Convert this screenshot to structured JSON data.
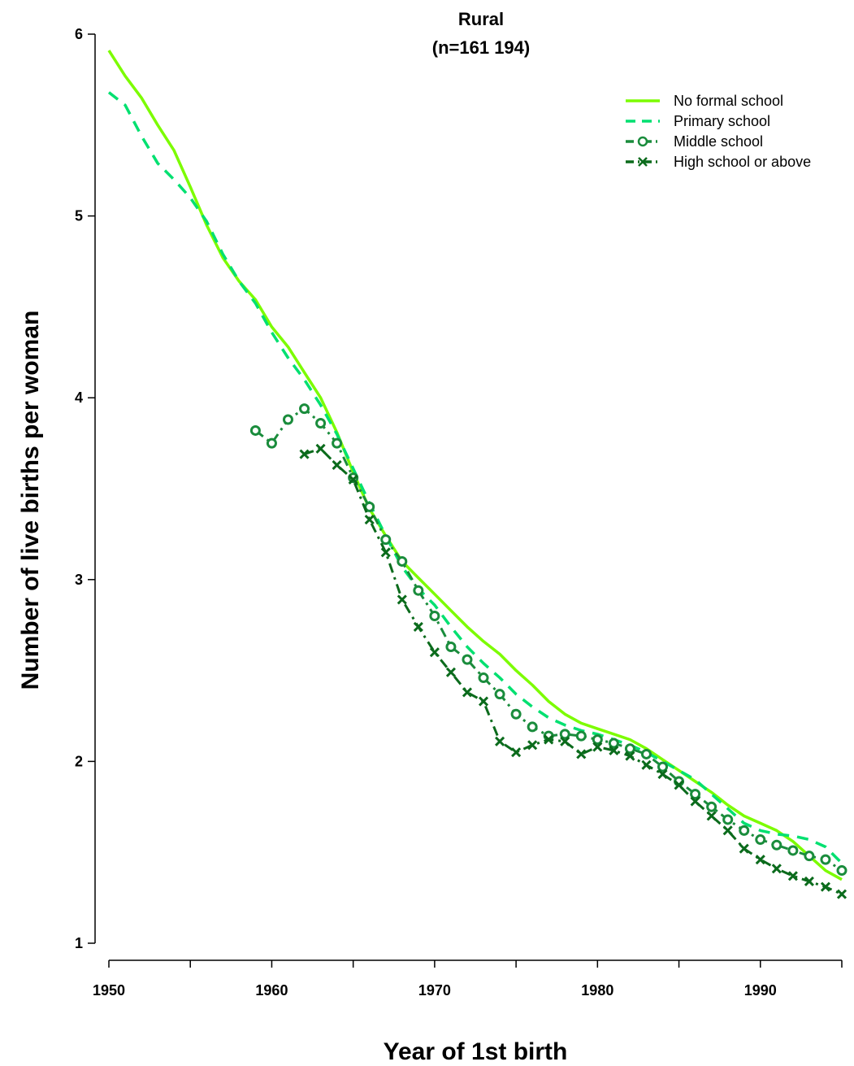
{
  "chart_data": {
    "type": "line",
    "title": "Rural",
    "subtitle": "(n=161 194)",
    "xlabel": "Year of 1st birth",
    "ylabel": "Number of live births per woman",
    "xlim": [
      1950,
      1995
    ],
    "ylim": [
      1,
      6
    ],
    "x_ticks": [
      1950,
      1955,
      1960,
      1965,
      1970,
      1975,
      1980,
      1985,
      1990,
      1995
    ],
    "x_tick_labels": [
      "1950",
      "1960",
      "1970",
      "1980",
      "1990"
    ],
    "y_ticks": [
      1,
      2,
      3,
      4,
      5,
      6
    ],
    "y_tick_labels": [
      "1",
      "2",
      "3",
      "4",
      "5",
      "6"
    ],
    "grid": false,
    "legend_position": "top-right",
    "series": [
      {
        "name": "No formal school",
        "color": "#7CFC00",
        "style": "solid",
        "x": [
          1950,
          1951,
          1952,
          1953,
          1954,
          1955,
          1956,
          1957,
          1958,
          1959,
          1960,
          1961,
          1962,
          1963,
          1964,
          1965,
          1966,
          1967,
          1968,
          1969,
          1970,
          1971,
          1972,
          1973,
          1974,
          1975,
          1976,
          1977,
          1978,
          1979,
          1980,
          1981,
          1982,
          1983,
          1984,
          1985,
          1986,
          1987,
          1988,
          1989,
          1990,
          1991,
          1992,
          1993,
          1994,
          1995
        ],
        "y": [
          5.91,
          5.77,
          5.65,
          5.5,
          5.36,
          5.16,
          4.95,
          4.77,
          4.64,
          4.54,
          4.39,
          4.28,
          4.14,
          4.0,
          3.81,
          3.59,
          3.39,
          3.24,
          3.1,
          3.01,
          2.92,
          2.83,
          2.74,
          2.66,
          2.59,
          2.5,
          2.42,
          2.33,
          2.26,
          2.21,
          2.18,
          2.15,
          2.12,
          2.07,
          2.01,
          1.95,
          1.89,
          1.83,
          1.76,
          1.7,
          1.66,
          1.62,
          1.56,
          1.48,
          1.4,
          1.35
        ]
      },
      {
        "name": "Primary school",
        "color": "#00E070",
        "style": "dashed",
        "x": [
          1950,
          1951,
          1952,
          1953,
          1954,
          1955,
          1956,
          1957,
          1958,
          1959,
          1960,
          1961,
          1962,
          1963,
          1964,
          1965,
          1966,
          1967,
          1968,
          1969,
          1970,
          1971,
          1972,
          1973,
          1974,
          1975,
          1976,
          1977,
          1978,
          1979,
          1980,
          1981,
          1982,
          1983,
          1984,
          1985,
          1986,
          1987,
          1988,
          1989,
          1990,
          1991,
          1992,
          1993,
          1994,
          1995
        ],
        "y": [
          5.68,
          5.61,
          5.44,
          5.29,
          5.2,
          5.1,
          4.97,
          4.79,
          4.64,
          4.52,
          4.36,
          4.22,
          4.1,
          3.96,
          3.8,
          3.61,
          3.42,
          3.24,
          3.07,
          2.95,
          2.86,
          2.74,
          2.63,
          2.54,
          2.46,
          2.37,
          2.3,
          2.24,
          2.2,
          2.17,
          2.15,
          2.12,
          2.09,
          2.05,
          2.0,
          1.95,
          1.9,
          1.82,
          1.74,
          1.66,
          1.62,
          1.6,
          1.59,
          1.57,
          1.53,
          1.44
        ]
      },
      {
        "name": "Middle school",
        "color": "#1A8C3C",
        "style": "dashdot",
        "marker": "o",
        "x": [
          1959,
          1960,
          1961,
          1962,
          1963,
          1964,
          1965,
          1966,
          1967,
          1968,
          1969,
          1970,
          1971,
          1972,
          1973,
          1974,
          1975,
          1976,
          1977,
          1978,
          1979,
          1980,
          1981,
          1982,
          1983,
          1984,
          1985,
          1986,
          1987,
          1988,
          1989,
          1990,
          1991,
          1992,
          1993,
          1994,
          1995
        ],
        "y": [
          3.82,
          3.75,
          3.88,
          3.94,
          3.86,
          3.75,
          3.56,
          3.4,
          3.22,
          3.1,
          2.94,
          2.8,
          2.63,
          2.56,
          2.46,
          2.37,
          2.26,
          2.19,
          2.14,
          2.15,
          2.14,
          2.12,
          2.1,
          2.07,
          2.04,
          1.97,
          1.89,
          1.82,
          1.75,
          1.68,
          1.62,
          1.57,
          1.54,
          1.51,
          1.48,
          1.46,
          1.4
        ]
      },
      {
        "name": "High school or above",
        "color": "#0B6B1C",
        "style": "dashdot",
        "marker": "x",
        "x": [
          1962,
          1963,
          1964,
          1965,
          1966,
          1967,
          1968,
          1969,
          1970,
          1971,
          1972,
          1973,
          1974,
          1975,
          1976,
          1977,
          1978,
          1979,
          1980,
          1981,
          1982,
          1983,
          1984,
          1985,
          1986,
          1987,
          1988,
          1989,
          1990,
          1991,
          1992,
          1993,
          1994,
          1995
        ],
        "y": [
          3.69,
          3.72,
          3.63,
          3.55,
          3.33,
          3.15,
          2.89,
          2.74,
          2.6,
          2.49,
          2.38,
          2.33,
          2.11,
          2.05,
          2.09,
          2.12,
          2.11,
          2.04,
          2.08,
          2.06,
          2.03,
          1.98,
          1.93,
          1.87,
          1.78,
          1.7,
          1.62,
          1.52,
          1.46,
          1.41,
          1.37,
          1.34,
          1.31,
          1.27
        ]
      }
    ]
  }
}
